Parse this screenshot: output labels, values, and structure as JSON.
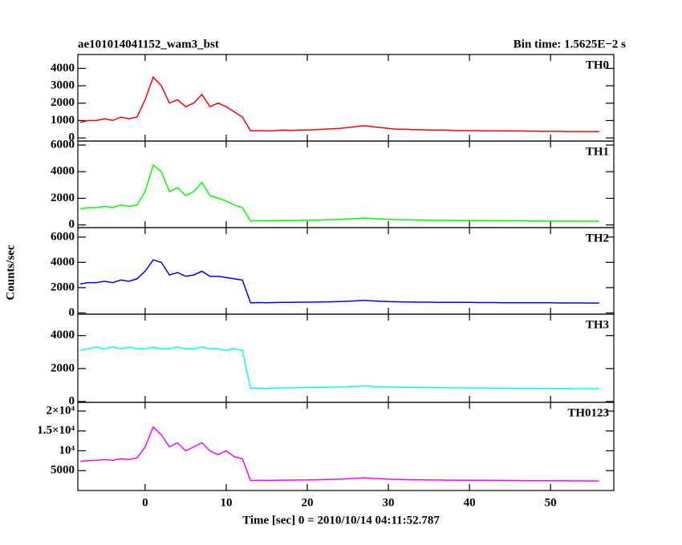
{
  "chart_data": [
    {
      "type": "line",
      "title": "ae101014041152_wam3_bst",
      "subtitle": "Bin time: 1.5625E−2 s",
      "xlim": [
        -8.3,
        57.8
      ],
      "ylim": [
        -180,
        4800
      ],
      "yticks": [
        0,
        1000,
        2000,
        3000,
        4000
      ],
      "x": [
        -8,
        -7,
        -6,
        -5,
        -4,
        -3,
        -2,
        -1,
        0,
        1,
        2,
        3,
        4,
        5,
        6,
        7,
        8,
        9,
        10,
        11,
        12,
        13,
        14,
        15,
        16,
        17,
        18,
        19,
        20,
        21,
        22,
        23,
        24,
        25,
        26,
        27,
        28,
        29,
        30,
        31,
        32,
        33,
        34,
        35,
        36,
        37,
        38,
        39,
        40,
        41,
        42,
        43,
        44,
        45,
        46,
        47,
        48,
        49,
        50,
        51,
        52,
        53,
        54,
        55,
        56
      ],
      "series": [
        {
          "name": "TH0",
          "color": "#ff0000",
          "values": [
            900,
            1000,
            1000,
            1100,
            1000,
            1200,
            1100,
            1200,
            2200,
            3500,
            3000,
            2000,
            2200,
            1800,
            2000,
            2500,
            1800,
            2000,
            1800,
            1500,
            1200,
            400,
            420,
            400,
            420,
            450,
            430,
            450,
            450,
            480,
            500,
            520,
            550,
            600,
            650,
            700,
            650,
            600,
            550,
            500,
            500,
            480,
            470,
            450,
            450,
            450,
            430,
            420,
            420,
            420,
            410,
            400,
            400,
            400,
            400,
            390,
            390,
            380,
            380,
            380,
            370,
            370,
            370,
            360,
            360
          ]
        }
      ]
    },
    {
      "type": "line",
      "xlim": [
        -8.3,
        57.8
      ],
      "ylim": [
        -200,
        6300
      ],
      "yticks": [
        0,
        2000,
        4000,
        6000
      ],
      "x": [
        -8,
        -7,
        -6,
        -5,
        -4,
        -3,
        -2,
        -1,
        0,
        1,
        2,
        3,
        4,
        5,
        6,
        7,
        8,
        9,
        10,
        11,
        12,
        13,
        14,
        15,
        16,
        17,
        18,
        19,
        20,
        21,
        22,
        23,
        24,
        25,
        26,
        27,
        28,
        29,
        30,
        31,
        32,
        33,
        34,
        35,
        36,
        37,
        38,
        39,
        40,
        41,
        42,
        43,
        44,
        45,
        46,
        47,
        48,
        49,
        50,
        51,
        52,
        53,
        54,
        55,
        56
      ],
      "series": [
        {
          "name": "TH1",
          "color": "#00ff00",
          "values": [
            1200,
            1300,
            1300,
            1400,
            1300,
            1500,
            1400,
            1500,
            2500,
            4500,
            4000,
            2500,
            2800,
            2200,
            2500,
            3200,
            2200,
            2000,
            1800,
            1500,
            1300,
            300,
            320,
            300,
            320,
            340,
            330,
            350,
            350,
            370,
            380,
            400,
            420,
            450,
            480,
            520,
            480,
            450,
            420,
            400,
            390,
            380,
            370,
            360,
            350,
            350,
            340,
            330,
            330,
            330,
            320,
            320,
            310,
            310,
            310,
            300,
            300,
            300,
            290,
            290,
            290,
            280,
            280,
            280,
            280
          ]
        }
      ]
    },
    {
      "type": "line",
      "ylabel": "Counts/sec",
      "xlim": [
        -8.3,
        57.8
      ],
      "ylim": [
        -100,
        6750
      ],
      "yticks": [
        0,
        2000,
        4000,
        6000
      ],
      "x": [
        -8,
        -7,
        -6,
        -5,
        -4,
        -3,
        -2,
        -1,
        0,
        1,
        2,
        3,
        4,
        5,
        6,
        7,
        8,
        9,
        10,
        11,
        12,
        13,
        14,
        15,
        16,
        17,
        18,
        19,
        20,
        21,
        22,
        23,
        24,
        25,
        26,
        27,
        28,
        29,
        30,
        31,
        32,
        33,
        34,
        35,
        36,
        37,
        38,
        39,
        40,
        41,
        42,
        43,
        44,
        45,
        46,
        47,
        48,
        49,
        50,
        51,
        52,
        53,
        54,
        55,
        56
      ],
      "series": [
        {
          "name": "TH2",
          "color": "#0000ff",
          "values": [
            2300,
            2400,
            2400,
            2500,
            2400,
            2600,
            2500,
            2700,
            3300,
            4200,
            4000,
            3000,
            3200,
            2900,
            3000,
            3300,
            2900,
            2900,
            2800,
            2700,
            2600,
            800,
            820,
            800,
            820,
            840,
            830,
            850,
            850,
            860,
            870,
            880,
            900,
            920,
            950,
            1000,
            950,
            920,
            900,
            880,
            870,
            860,
            850,
            850,
            840,
            840,
            830,
            830,
            830,
            820,
            820,
            820,
            810,
            810,
            810,
            800,
            800,
            800,
            800,
            790,
            790,
            790,
            790,
            780,
            780
          ]
        }
      ]
    },
    {
      "type": "line",
      "xlim": [
        -8.3,
        57.8
      ],
      "ylim": [
        -50,
        5300
      ],
      "yticks": [
        0,
        2000,
        4000
      ],
      "x": [
        -8,
        -7,
        -6,
        -5,
        -4,
        -3,
        -2,
        -1,
        0,
        1,
        2,
        3,
        4,
        5,
        6,
        7,
        8,
        9,
        10,
        11,
        12,
        13,
        14,
        15,
        16,
        17,
        18,
        19,
        20,
        21,
        22,
        23,
        24,
        25,
        26,
        27,
        28,
        29,
        30,
        31,
        32,
        33,
        34,
        35,
        36,
        37,
        38,
        39,
        40,
        41,
        42,
        43,
        44,
        45,
        46,
        47,
        48,
        49,
        50,
        51,
        52,
        53,
        54,
        55,
        56
      ],
      "series": [
        {
          "name": "TH3",
          "color": "#00ffff",
          "values": [
            3100,
            3200,
            3300,
            3200,
            3300,
            3200,
            3300,
            3200,
            3200,
            3300,
            3200,
            3200,
            3300,
            3200,
            3200,
            3300,
            3200,
            3200,
            3100,
            3200,
            3100,
            800,
            820,
            800,
            820,
            830,
            830,
            840,
            850,
            860,
            860,
            870,
            880,
            900,
            920,
            960,
            920,
            900,
            880,
            870,
            860,
            860,
            850,
            850,
            840,
            840,
            830,
            830,
            820,
            820,
            820,
            810,
            810,
            810,
            800,
            800,
            800,
            800,
            790,
            790,
            790,
            780,
            780,
            780,
            780
          ]
        }
      ]
    },
    {
      "type": "line",
      "xlabel": "Time [sec] 0 = 2010/10/14 04:11:52.787",
      "xlim": [
        -8.3,
        57.8
      ],
      "ylim": [
        0,
        22200
      ],
      "xticks": [
        0,
        10,
        20,
        30,
        40,
        50
      ],
      "yticks": [
        5000,
        {
          "value": 10000,
          "label": "10⁴"
        },
        {
          "value": 15000,
          "label": "1.5×10⁴"
        },
        {
          "value": 20000,
          "label": "2×10⁴"
        }
      ],
      "x": [
        -8,
        -7,
        -6,
        -5,
        -4,
        -3,
        -2,
        -1,
        0,
        1,
        2,
        3,
        4,
        5,
        6,
        7,
        8,
        9,
        10,
        11,
        12,
        13,
        14,
        15,
        16,
        17,
        18,
        19,
        20,
        21,
        22,
        23,
        24,
        25,
        26,
        27,
        28,
        29,
        30,
        31,
        32,
        33,
        34,
        35,
        36,
        37,
        38,
        39,
        40,
        41,
        42,
        43,
        44,
        45,
        46,
        47,
        48,
        49,
        50,
        51,
        52,
        53,
        54,
        55,
        56
      ],
      "series": [
        {
          "name": "TH0123",
          "color": "#ff00ff",
          "values": [
            7300,
            7500,
            7600,
            7800,
            7600,
            8000,
            7800,
            8200,
            11000,
            16000,
            14000,
            11000,
            12000,
            10000,
            11000,
            12000,
            10000,
            9000,
            10000,
            8500,
            8000,
            2500,
            2550,
            2500,
            2550,
            2600,
            2600,
            2650,
            2650,
            2700,
            2750,
            2800,
            2850,
            2950,
            3050,
            3200,
            3050,
            2950,
            2850,
            2800,
            2750,
            2700,
            2700,
            2650,
            2650,
            2600,
            2600,
            2580,
            2560,
            2550,
            2540,
            2530,
            2520,
            2510,
            2500,
            2490,
            2480,
            2470,
            2460,
            2450,
            2440,
            2430,
            2420,
            2410,
            2400
          ]
        }
      ]
    }
  ]
}
